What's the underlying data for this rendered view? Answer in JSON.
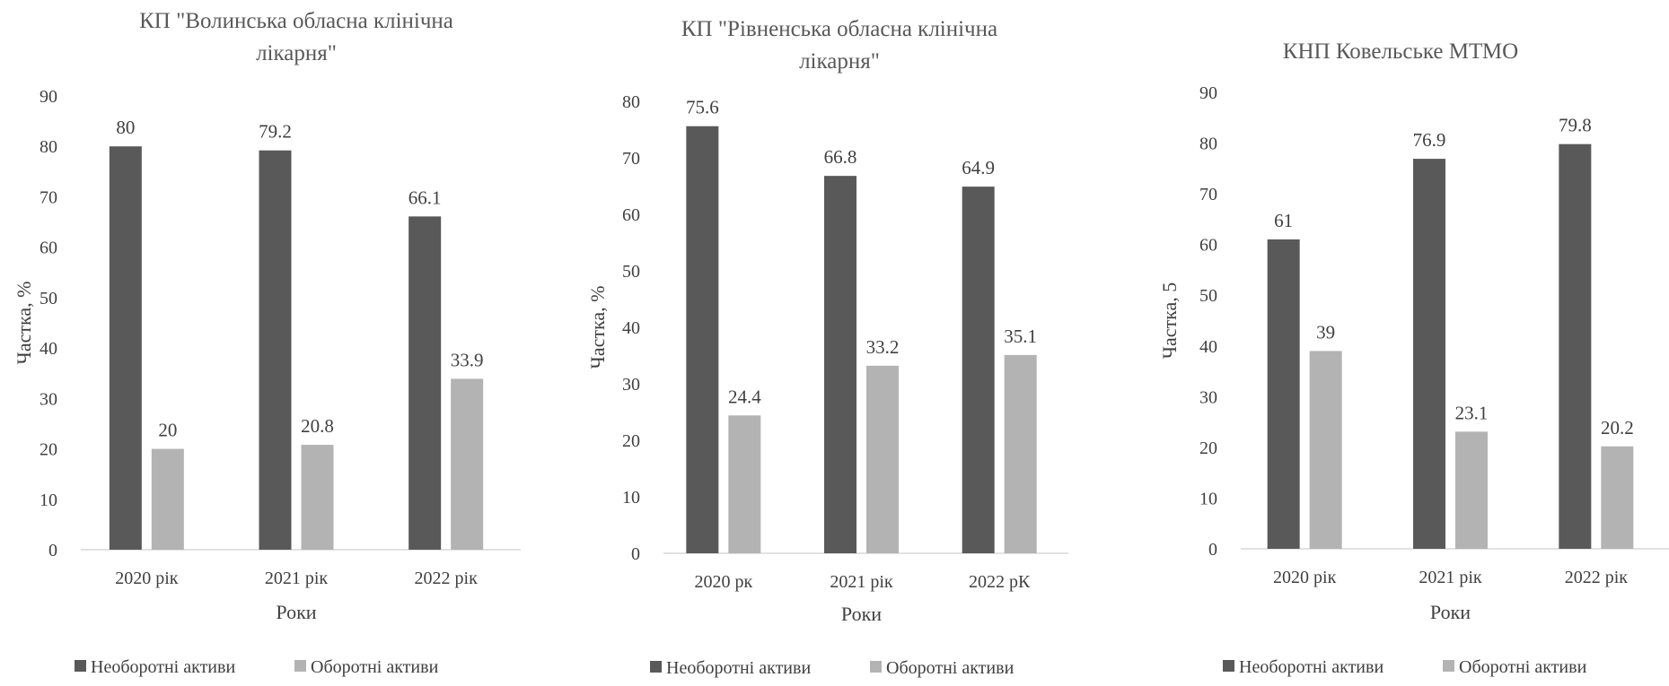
{
  "chart_data": [
    {
      "type": "bar",
      "title": "КП \"Волинська обласна клінічна лікарня\"",
      "title_lines": [
        "КП \"Волинська обласна клінічна",
        "лікарня\""
      ],
      "categories": [
        "2020 рік",
        "2021 рік",
        "2022 рік"
      ],
      "series": [
        {
          "name": "Необоротні активи",
          "values": [
            80,
            79.2,
            66.1
          ],
          "color": "#595959"
        },
        {
          "name": "Оборотні активи",
          "values": [
            20,
            20.8,
            33.9
          ],
          "color": "#b3b3b3"
        }
      ],
      "xlabel": "Роки",
      "ylabel": "Частка, %",
      "ylim": [
        0,
        90
      ],
      "yticks": [
        0,
        10,
        20,
        30,
        40,
        50,
        60,
        70,
        80,
        90
      ],
      "grid": false,
      "legend": "bottom"
    },
    {
      "type": "bar",
      "title": "КП \"Рівненська обласна клінічна лікарня\"",
      "title_lines": [
        "КП \"Рівненська обласна клінічна",
        "лікарня\""
      ],
      "categories": [
        "2020 рк",
        "2021 рік",
        "2022 рК"
      ],
      "series": [
        {
          "name": "Необоротні активи",
          "values": [
            75.6,
            66.8,
            64.9
          ],
          "color": "#595959"
        },
        {
          "name": "Оборотні активи",
          "values": [
            24.4,
            33.2,
            35.1
          ],
          "color": "#b3b3b3"
        }
      ],
      "xlabel": "Роки",
      "ylabel": "Частка, %",
      "ylim": [
        0,
        80
      ],
      "yticks": [
        0,
        10,
        20,
        30,
        40,
        50,
        60,
        70,
        80
      ],
      "grid": false,
      "legend": "bottom"
    },
    {
      "type": "bar",
      "title": "КНП Ковельське МТМО",
      "title_lines": [
        "КНП Ковельське МТМО"
      ],
      "categories": [
        "2020 рік",
        "2021 рік",
        "2022 рік"
      ],
      "series": [
        {
          "name": "Необоротні активи",
          "values": [
            61,
            76.9,
            79.8
          ],
          "color": "#595959"
        },
        {
          "name": "Оборотні активи",
          "values": [
            39,
            23.1,
            20.2
          ],
          "color": "#b3b3b3"
        }
      ],
      "xlabel": "Роки",
      "ylabel": "Частка, 5",
      "ylim": [
        0,
        90
      ],
      "yticks": [
        0,
        10,
        20,
        30,
        40,
        50,
        60,
        70,
        80,
        90
      ],
      "grid": false,
      "legend": "bottom"
    }
  ]
}
